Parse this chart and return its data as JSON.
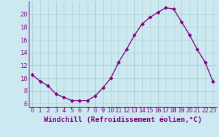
{
  "x": [
    0,
    1,
    2,
    3,
    4,
    5,
    6,
    7,
    8,
    9,
    10,
    11,
    12,
    13,
    14,
    15,
    16,
    17,
    18,
    19,
    20,
    21,
    22,
    23
  ],
  "y": [
    10.5,
    9.5,
    8.8,
    7.5,
    7.0,
    6.5,
    6.5,
    6.5,
    7.2,
    8.5,
    10.0,
    12.5,
    14.5,
    16.7,
    18.5,
    19.5,
    20.3,
    21.0,
    20.8,
    18.8,
    16.8,
    14.5,
    12.5,
    9.5
  ],
  "line_color": "#800080",
  "marker": "D",
  "marker_size": 2.5,
  "bg_color": "#cce8f0",
  "grid_color": "#aacccc",
  "xlabel": "Windchill (Refroidissement éolien,°C)",
  "ylim": [
    5.5,
    22.0
  ],
  "xlim": [
    -0.5,
    23.5
  ],
  "yticks": [
    6,
    8,
    10,
    12,
    14,
    16,
    18,
    20
  ],
  "xticks": [
    0,
    1,
    2,
    3,
    4,
    5,
    6,
    7,
    8,
    9,
    10,
    11,
    12,
    13,
    14,
    15,
    16,
    17,
    18,
    19,
    20,
    21,
    22,
    23
  ],
  "font_color": "#800080",
  "tick_fontsize": 6.5,
  "xlabel_fontsize": 7.5,
  "linewidth": 1.0
}
